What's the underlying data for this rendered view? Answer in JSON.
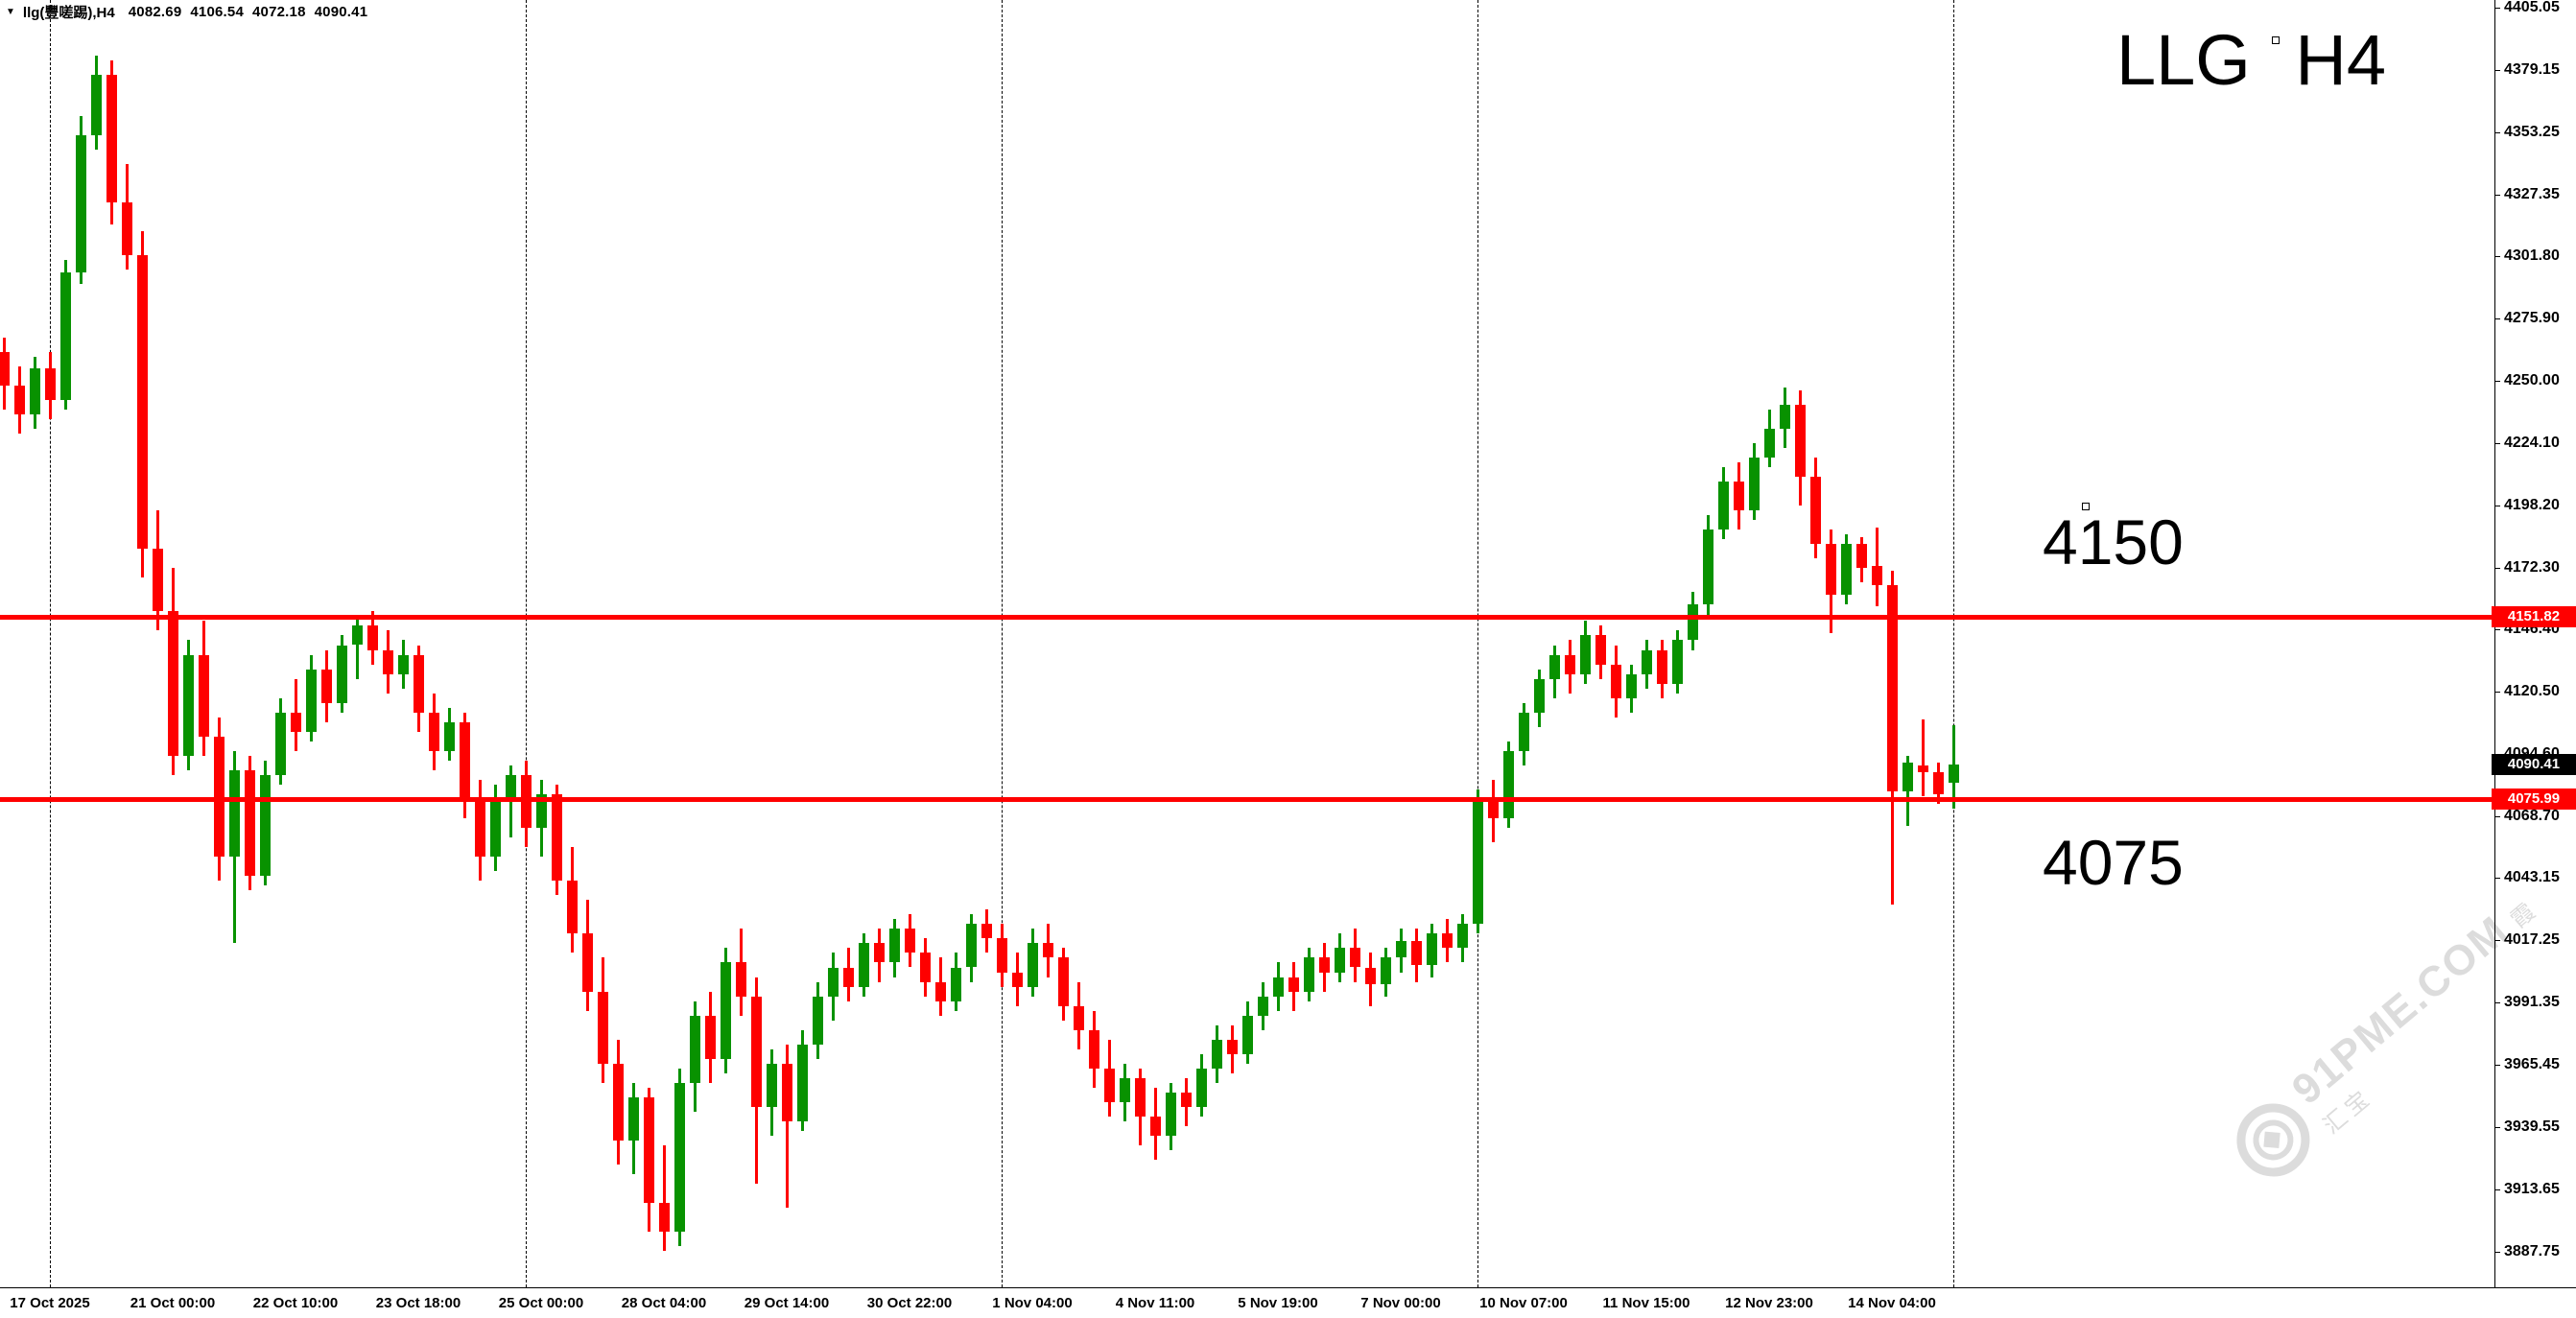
{
  "header": {
    "dropdown_icon": "▼",
    "symbol": "llg(豐嗟踢),H4",
    "open": "4082.69",
    "high": "4106.54",
    "low": "4072.18",
    "close": "4090.41"
  },
  "annotations": [
    {
      "text": "LLG H4"
    },
    {
      "text": "4150"
    },
    {
      "text": "4075"
    }
  ],
  "watermark": {
    "site": "91PME.COM",
    "cn": "霞汇宝"
  },
  "colors": {
    "bull": "#089200",
    "bear": "#fe0000",
    "hline": "#ff0000",
    "grid": "#000000",
    "background": "#ffffff",
    "text": "#000000",
    "tag_text": "#ffffff",
    "line_tag_bg": "#ff0000",
    "current_tag_bg": "#000000",
    "watermark": "#dcdcdc"
  },
  "price_scale": {
    "tags": [
      {
        "label": "4151.82",
        "value": 4151.82,
        "style": "line"
      },
      {
        "label": "4090.41",
        "value": 4090.41,
        "style": "current"
      },
      {
        "label": "4075.99",
        "value": 4075.99,
        "style": "line"
      }
    ]
  },
  "chart_data": {
    "type": "candlestick",
    "title": "LLG H4",
    "symbol": "llg",
    "timeframe": "H4",
    "ylim": [
      3873.0,
      4408.2
    ],
    "y_ticks": [
      4405.05,
      4379.15,
      4353.25,
      4327.35,
      4301.8,
      4275.9,
      4250.0,
      4224.1,
      4198.2,
      4172.3,
      4146.4,
      4120.5,
      4094.6,
      4068.7,
      4043.15,
      4017.25,
      3991.35,
      3965.45,
      3939.55,
      3913.65,
      3887.75
    ],
    "x_labels": [
      "17 Oct 2025",
      "21 Oct 00:00",
      "22 Oct 10:00",
      "23 Oct 18:00",
      "25 Oct 00:00",
      "28 Oct 04:00",
      "29 Oct 14:00",
      "30 Oct 22:00",
      "1 Nov 04:00",
      "4 Nov 11:00",
      "5 Nov 19:00",
      "7 Nov 00:00",
      "10 Nov 07:00",
      "11 Nov 15:00",
      "12 Nov 23:00",
      "14 Nov 04:00"
    ],
    "x_label_indices": [
      3,
      11,
      19,
      27,
      35,
      43,
      51,
      59,
      67,
      75,
      83,
      91,
      99,
      107,
      115,
      123
    ],
    "grid_x_indices": [
      3,
      34,
      65,
      96,
      127
    ],
    "hlines": [
      {
        "value": 4151.82,
        "color": "#ff0000"
      },
      {
        "value": 4075.99,
        "color": "#ff0000"
      }
    ],
    "current_price": 4090.41,
    "last_bar_ohlc": [
      4082.69,
      4106.54,
      4072.18,
      4090.41
    ],
    "candles": [
      [
        4262,
        4268,
        4238,
        4248
      ],
      [
        4248,
        4256,
        4228,
        4236
      ],
      [
        4236,
        4260,
        4230,
        4255
      ],
      [
        4255,
        4262,
        4234,
        4242
      ],
      [
        4242,
        4300,
        4238,
        4295
      ],
      [
        4295,
        4360,
        4290,
        4352
      ],
      [
        4352,
        4385,
        4346,
        4377
      ],
      [
        4377,
        4383,
        4315,
        4324
      ],
      [
        4324,
        4340,
        4296,
        4302
      ],
      [
        4302,
        4312,
        4168,
        4180
      ],
      [
        4180,
        4196,
        4146,
        4154
      ],
      [
        4154,
        4172,
        4086,
        4094
      ],
      [
        4094,
        4142,
        4088,
        4136
      ],
      [
        4136,
        4150,
        4094,
        4102
      ],
      [
        4102,
        4110,
        4042,
        4052
      ],
      [
        4052,
        4096,
        4016,
        4088
      ],
      [
        4088,
        4094,
        4038,
        4044
      ],
      [
        4044,
        4092,
        4040,
        4086
      ],
      [
        4086,
        4118,
        4082,
        4112
      ],
      [
        4112,
        4126,
        4096,
        4104
      ],
      [
        4104,
        4136,
        4100,
        4130
      ],
      [
        4130,
        4138,
        4108,
        4116
      ],
      [
        4116,
        4144,
        4112,
        4140
      ],
      [
        4140,
        4152,
        4126,
        4148
      ],
      [
        4148,
        4154,
        4132,
        4138
      ],
      [
        4138,
        4146,
        4120,
        4128
      ],
      [
        4128,
        4142,
        4122,
        4136
      ],
      [
        4136,
        4140,
        4104,
        4112
      ],
      [
        4112,
        4120,
        4088,
        4096
      ],
      [
        4096,
        4114,
        4092,
        4108
      ],
      [
        4108,
        4112,
        4068,
        4076
      ],
      [
        4076,
        4084,
        4042,
        4052
      ],
      [
        4052,
        4082,
        4046,
        4076
      ],
      [
        4076,
        4090,
        4060,
        4086
      ],
      [
        4086,
        4092,
        4056,
        4064
      ],
      [
        4064,
        4084,
        4052,
        4078
      ],
      [
        4078,
        4082,
        4036,
        4042
      ],
      [
        4042,
        4056,
        4012,
        4020
      ],
      [
        4020,
        4034,
        3988,
        3996
      ],
      [
        3996,
        4010,
        3958,
        3966
      ],
      [
        3966,
        3976,
        3924,
        3934
      ],
      [
        3934,
        3958,
        3920,
        3952
      ],
      [
        3952,
        3956,
        3896,
        3908
      ],
      [
        3908,
        3932,
        3888,
        3896
      ],
      [
        3896,
        3964,
        3890,
        3958
      ],
      [
        3958,
        3992,
        3946,
        3986
      ],
      [
        3986,
        3996,
        3958,
        3968
      ],
      [
        3968,
        4014,
        3962,
        4008
      ],
      [
        4008,
        4022,
        3986,
        3994
      ],
      [
        3994,
        4002,
        3916,
        3948
      ],
      [
        3948,
        3972,
        3936,
        3966
      ],
      [
        3966,
        3974,
        3906,
        3942
      ],
      [
        3942,
        3980,
        3938,
        3974
      ],
      [
        3974,
        4000,
        3968,
        3994
      ],
      [
        3994,
        4012,
        3984,
        4006
      ],
      [
        4006,
        4014,
        3992,
        3998
      ],
      [
        3998,
        4020,
        3994,
        4016
      ],
      [
        4016,
        4022,
        4000,
        4008
      ],
      [
        4008,
        4026,
        4002,
        4022
      ],
      [
        4022,
        4028,
        4006,
        4012
      ],
      [
        4012,
        4018,
        3994,
        4000
      ],
      [
        4000,
        4010,
        3986,
        3992
      ],
      [
        3992,
        4012,
        3988,
        4006
      ],
      [
        4006,
        4028,
        4000,
        4024
      ],
      [
        4024,
        4030,
        4012,
        4018
      ],
      [
        4018,
        4024,
        3998,
        4004
      ],
      [
        4004,
        4012,
        3990,
        3998
      ],
      [
        3998,
        4022,
        3994,
        4016
      ],
      [
        4016,
        4024,
        4002,
        4010
      ],
      [
        4010,
        4014,
        3984,
        3990
      ],
      [
        3990,
        4000,
        3972,
        3980
      ],
      [
        3980,
        3988,
        3956,
        3964
      ],
      [
        3964,
        3976,
        3944,
        3950
      ],
      [
        3950,
        3966,
        3942,
        3960
      ],
      [
        3960,
        3964,
        3932,
        3944
      ],
      [
        3944,
        3956,
        3926,
        3936
      ],
      [
        3936,
        3958,
        3930,
        3954
      ],
      [
        3954,
        3960,
        3940,
        3948
      ],
      [
        3948,
        3970,
        3944,
        3964
      ],
      [
        3964,
        3982,
        3958,
        3976
      ],
      [
        3976,
        3982,
        3962,
        3970
      ],
      [
        3970,
        3992,
        3966,
        3986
      ],
      [
        3986,
        4000,
        3980,
        3994
      ],
      [
        3994,
        4008,
        3988,
        4002
      ],
      [
        4002,
        4008,
        3988,
        3996
      ],
      [
        3996,
        4014,
        3992,
        4010
      ],
      [
        4010,
        4016,
        3996,
        4004
      ],
      [
        4004,
        4020,
        4000,
        4014
      ],
      [
        4014,
        4022,
        4000,
        4006
      ],
      [
        4006,
        4012,
        3990,
        3999
      ],
      [
        3999,
        4014,
        3994,
        4010
      ],
      [
        4010,
        4022,
        4004,
        4017
      ],
      [
        4017,
        4022,
        4000,
        4007
      ],
      [
        4007,
        4024,
        4002,
        4020
      ],
      [
        4020,
        4026,
        4008,
        4014
      ],
      [
        4014,
        4028,
        4008,
        4024
      ],
      [
        4024,
        4080,
        4020,
        4076
      ],
      [
        4076,
        4084,
        4058,
        4068
      ],
      [
        4068,
        4100,
        4064,
        4096
      ],
      [
        4096,
        4116,
        4090,
        4112
      ],
      [
        4112,
        4130,
        4106,
        4126
      ],
      [
        4126,
        4140,
        4118,
        4136
      ],
      [
        4136,
        4142,
        4120,
        4128
      ],
      [
        4128,
        4150,
        4124,
        4144
      ],
      [
        4144,
        4148,
        4126,
        4132
      ],
      [
        4132,
        4140,
        4110,
        4118
      ],
      [
        4118,
        4132,
        4112,
        4128
      ],
      [
        4128,
        4142,
        4122,
        4138
      ],
      [
        4138,
        4142,
        4118,
        4124
      ],
      [
        4124,
        4146,
        4120,
        4142
      ],
      [
        4142,
        4162,
        4138,
        4157
      ],
      [
        4157,
        4194,
        4152,
        4188
      ],
      [
        4188,
        4214,
        4184,
        4208
      ],
      [
        4208,
        4216,
        4188,
        4196
      ],
      [
        4196,
        4224,
        4192,
        4218
      ],
      [
        4218,
        4238,
        4214,
        4230
      ],
      [
        4230,
        4247,
        4222,
        4240
      ],
      [
        4240,
        4246,
        4198,
        4210
      ],
      [
        4210,
        4218,
        4176,
        4182
      ],
      [
        4182,
        4188,
        4145,
        4161
      ],
      [
        4161,
        4186,
        4157,
        4182
      ],
      [
        4182,
        4185,
        4166,
        4172
      ],
      [
        4173,
        4189,
        4156,
        4165
      ],
      [
        4165,
        4171,
        4032,
        4079
      ],
      [
        4079,
        4094,
        4065,
        4091
      ],
      [
        4090,
        4109,
        4077,
        4087
      ],
      [
        4087,
        4091,
        4074,
        4078
      ],
      [
        4082.69,
        4106.54,
        4072.18,
        4090.41
      ]
    ]
  }
}
